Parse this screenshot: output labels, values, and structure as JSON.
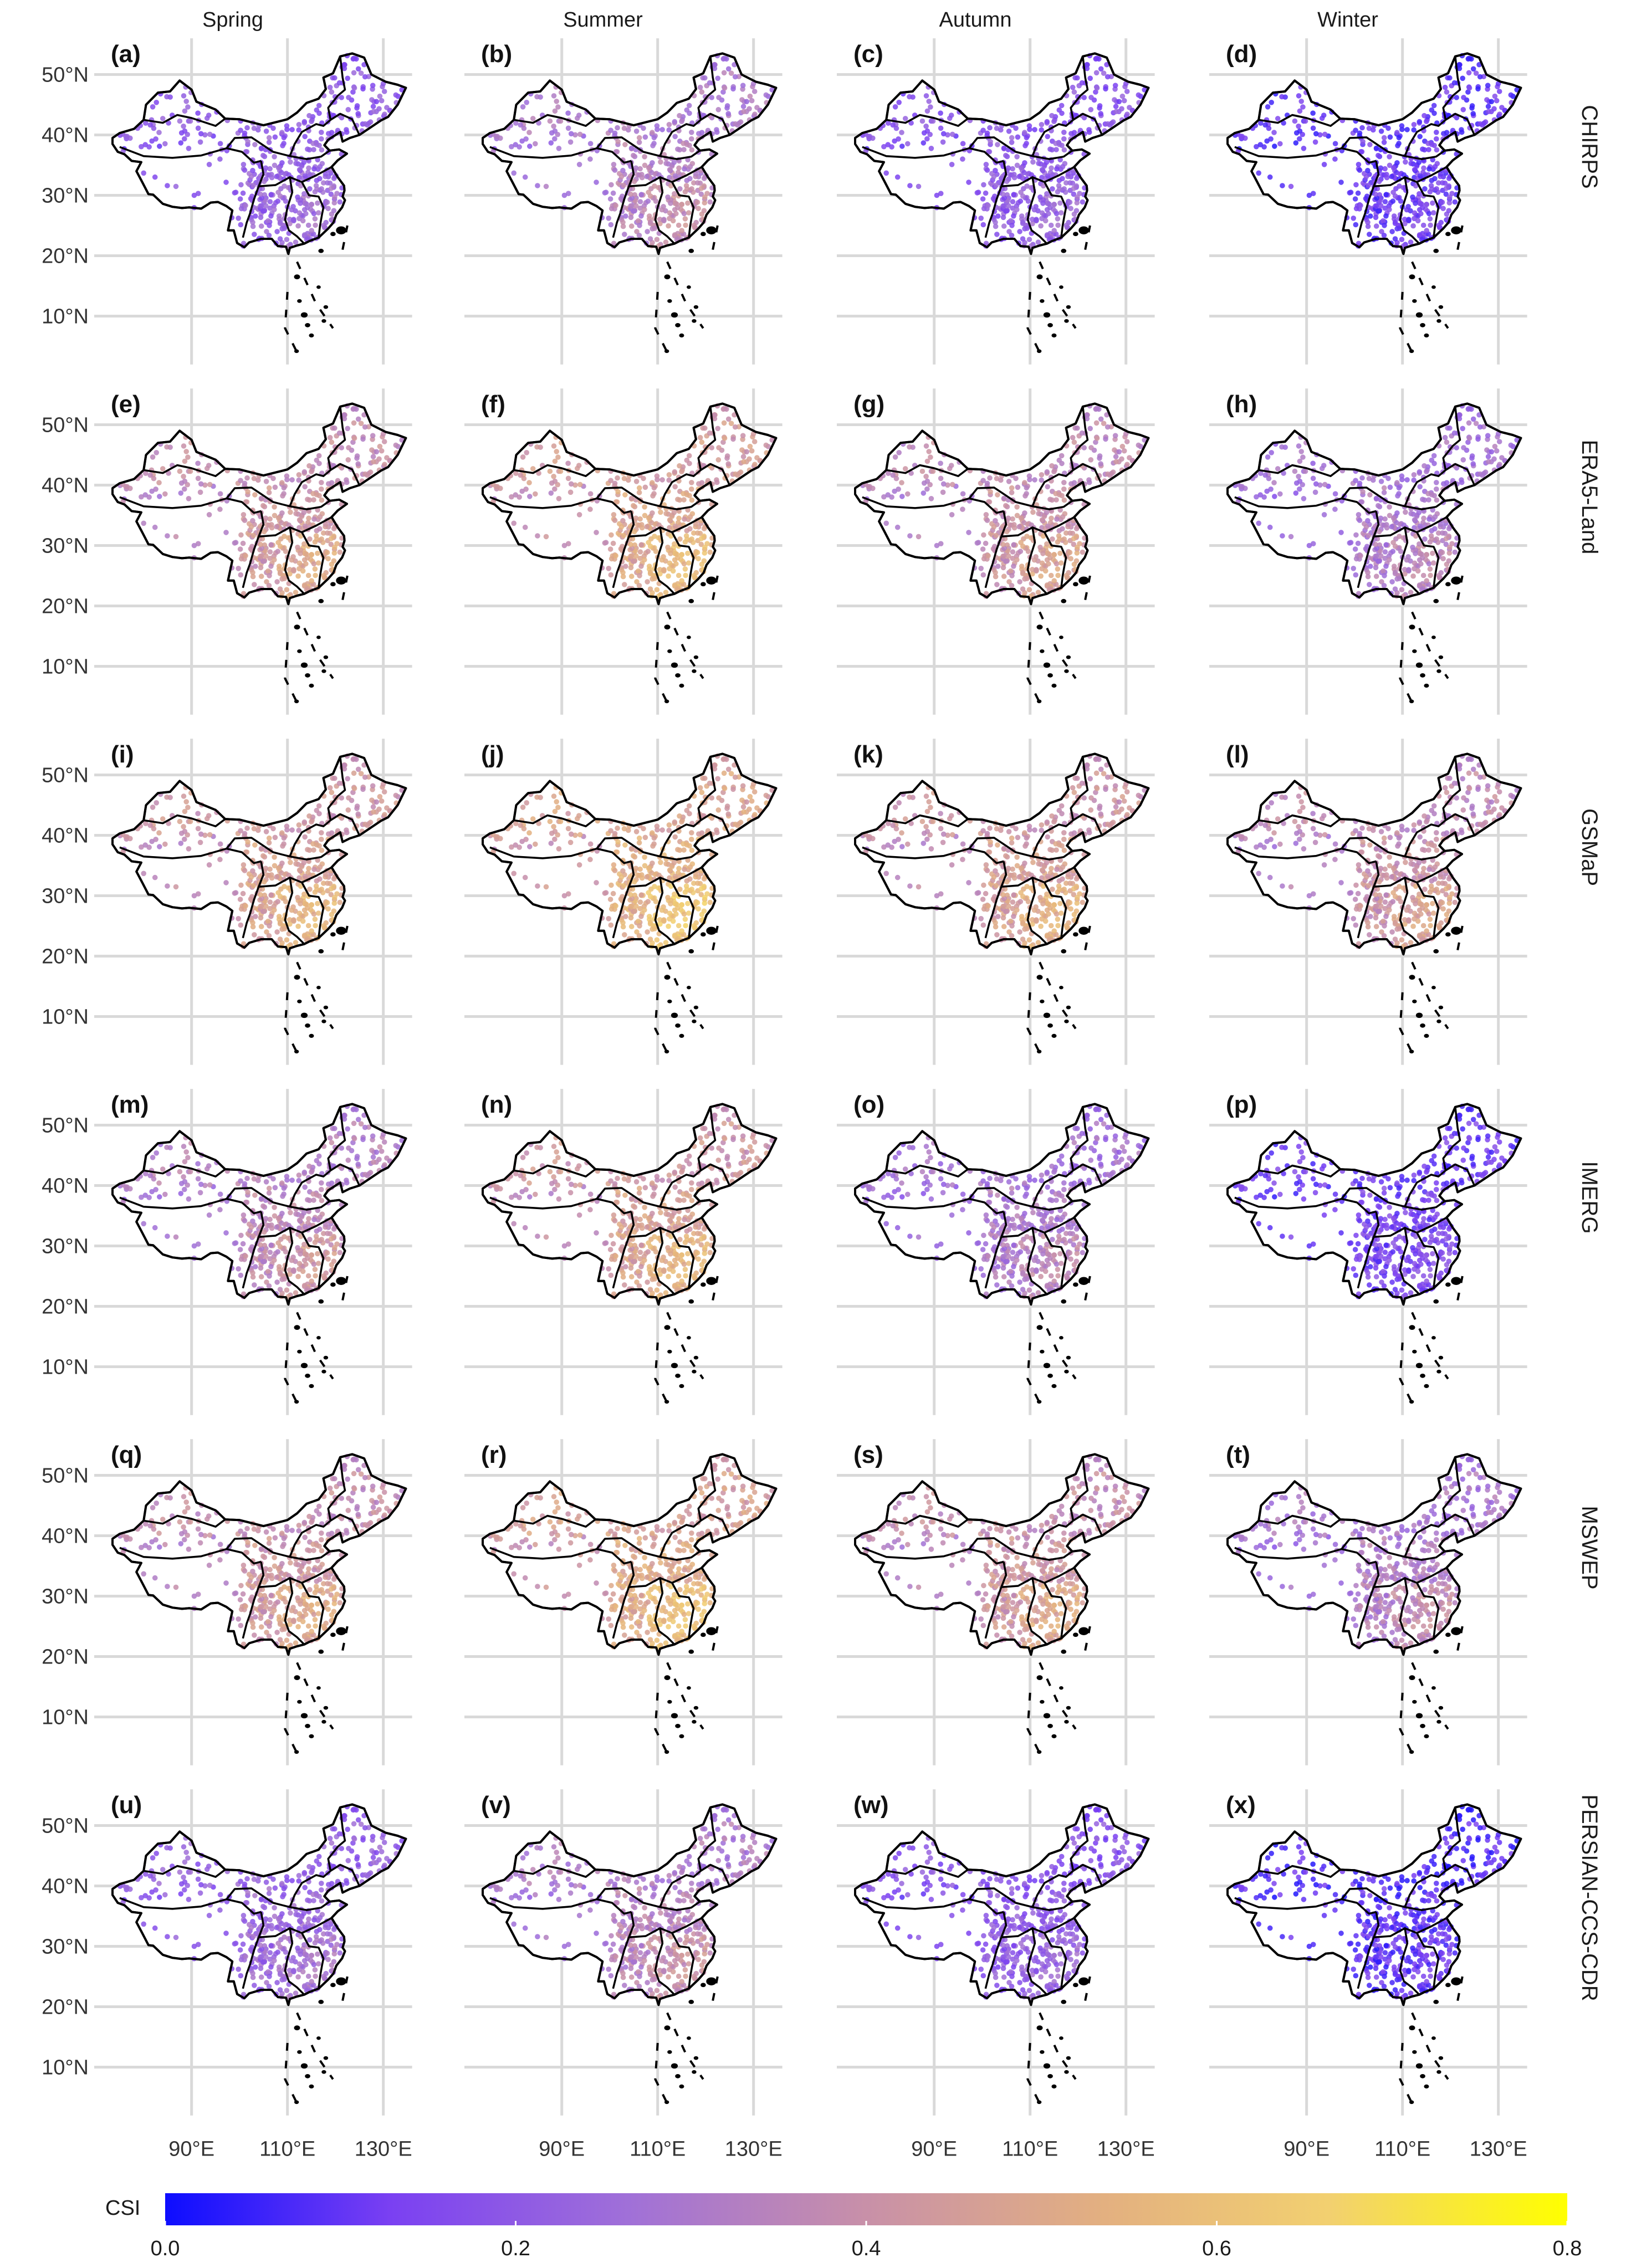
{
  "figure": {
    "columns": [
      "Spring",
      "Summer",
      "Autumn",
      "Winter"
    ],
    "rows": [
      "CHIRPS",
      "ERA5-Land",
      "GSMaP",
      "IMERG",
      "MSWEP",
      "PERSIAN-CCS-CDR"
    ],
    "panel_labels": [
      "(a)",
      "(b)",
      "(c)",
      "(d)",
      "(e)",
      "(f)",
      "(g)",
      "(h)",
      "(i)",
      "(j)",
      "(k)",
      "(l)",
      "(m)",
      "(n)",
      "(o)",
      "(p)",
      "(q)",
      "(r)",
      "(s)",
      "(t)",
      "(u)",
      "(v)",
      "(w)",
      "(x)"
    ],
    "y_axis_labels": [
      "50°N",
      "40°N",
      "30°N",
      "20°N",
      "10°N"
    ],
    "x_axis_labels": [
      "90°E",
      "110°E",
      "130°E"
    ]
  },
  "colorbar": {
    "title": "CSI",
    "ticks": [
      "0.0",
      "0.2",
      "0.4",
      "0.6",
      "0.8"
    ],
    "range": [
      0,
      0.8
    ],
    "colors": [
      "#0d0dff",
      "#7a40f2",
      "#a070d8",
      "#c890a8",
      "#e3b080",
      "#f2d070",
      "#ffff00"
    ]
  },
  "chart_data": {
    "type": "map",
    "description_metric": "CSI",
    "variable": "CSI",
    "panels_mean_csi": {
      "CHIRPS": {
        "Spring": 0.22,
        "Summer": 0.33,
        "Autumn": 0.2,
        "Winter": 0.12
      },
      "ERA5-Land": {
        "Spring": 0.42,
        "Summer": 0.48,
        "Autumn": 0.4,
        "Winter": 0.3
      },
      "GSMaP": {
        "Spring": 0.46,
        "Summer": 0.52,
        "Autumn": 0.45,
        "Winter": 0.4
      },
      "IMERG": {
        "Spring": 0.36,
        "Summer": 0.46,
        "Autumn": 0.3,
        "Winter": 0.14
      },
      "MSWEP": {
        "Spring": 0.42,
        "Summer": 0.5,
        "Autumn": 0.42,
        "Winter": 0.32
      },
      "PERSIAN-CCS-CDR": {
        "Spring": 0.24,
        "Summer": 0.34,
        "Autumn": 0.2,
        "Winter": 0.1
      }
    }
  }
}
